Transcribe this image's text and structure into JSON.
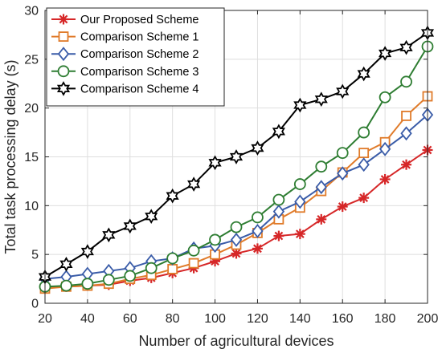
{
  "chart_data": {
    "type": "line",
    "xlabel": "Number of agricultural devices",
    "ylabel": "Total task processing delay (s)",
    "xlim": [
      20,
      200
    ],
    "ylim": [
      0,
      30
    ],
    "xticks": [
      20,
      40,
      60,
      80,
      100,
      120,
      140,
      160,
      180,
      200
    ],
    "yticks": [
      0,
      5,
      10,
      15,
      20,
      25,
      30
    ],
    "grid": true,
    "legend_position": "top-left",
    "x": [
      20,
      30,
      40,
      50,
      60,
      70,
      80,
      90,
      100,
      110,
      120,
      130,
      140,
      150,
      160,
      170,
      180,
      190,
      200
    ],
    "series": [
      {
        "name": "Our Proposed Scheme",
        "color": "#d62728",
        "marker": "asterisk",
        "values": [
          1.6,
          1.7,
          1.8,
          1.9,
          2.3,
          2.6,
          3.1,
          3.6,
          4.3,
          5.1,
          5.6,
          6.9,
          7.1,
          8.6,
          9.9,
          10.8,
          12.7,
          14.2,
          15.7
        ]
      },
      {
        "name": "Comparison Scheme 1",
        "color": "#e07b2a",
        "marker": "square",
        "values": [
          1.5,
          1.7,
          1.8,
          2.0,
          2.5,
          2.9,
          3.5,
          4.1,
          5.0,
          6.0,
          7.2,
          8.6,
          9.8,
          11.5,
          13.4,
          15.4,
          16.5,
          19.2,
          21.2
        ]
      },
      {
        "name": "Comparison Scheme 2",
        "color": "#3a5ca8",
        "marker": "diamond",
        "values": [
          2.5,
          2.7,
          3.0,
          3.3,
          3.6,
          4.3,
          4.6,
          5.6,
          5.9,
          6.5,
          7.4,
          9.4,
          10.4,
          11.9,
          13.3,
          14.2,
          15.8,
          17.4,
          19.3
        ]
      },
      {
        "name": "Comparison Scheme 3",
        "color": "#2e7d32",
        "marker": "circle",
        "values": [
          1.7,
          1.8,
          2.0,
          2.4,
          2.8,
          3.6,
          4.6,
          5.4,
          6.5,
          7.8,
          8.8,
          10.6,
          12.2,
          14.0,
          15.4,
          17.5,
          21.1,
          22.7,
          26.3
        ]
      },
      {
        "name": "Comparison Scheme 4",
        "color": "#000000",
        "marker": "hexagram",
        "values": [
          2.7,
          4.0,
          5.3,
          7.0,
          7.9,
          8.9,
          11.0,
          12.2,
          14.4,
          15.0,
          15.9,
          17.6,
          20.3,
          20.9,
          21.7,
          23.5,
          25.6,
          26.2,
          27.7
        ]
      }
    ]
  }
}
